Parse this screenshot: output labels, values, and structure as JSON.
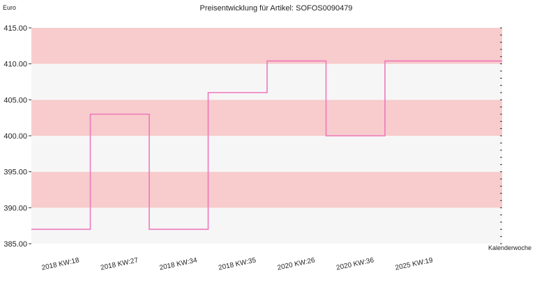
{
  "chart_data": {
    "type": "line",
    "step": true,
    "title": "Preisentwicklung für Artikel: SOFOS0090479",
    "ylabel": "Euro",
    "xlabel": "Kalenderwoche",
    "categories": [
      "2018 KW:18",
      "2018 KW:27",
      "2018 KW:34",
      "2018 KW:35",
      "2020 KW:26",
      "2020 KW:36",
      "2025 KW:19"
    ],
    "values": [
      387.0,
      403.0,
      387.0,
      406.0,
      410.4,
      400.0,
      410.4
    ],
    "ylim": [
      385,
      415
    ],
    "yticks": [
      "385.00",
      "390.00",
      "395.00",
      "400.00",
      "405.00",
      "410.00",
      "415.00"
    ],
    "band_colors": [
      "#f6f6f6",
      "#f8cccc"
    ],
    "line_color": "#ee77bb",
    "grid": false,
    "legend": "none"
  }
}
